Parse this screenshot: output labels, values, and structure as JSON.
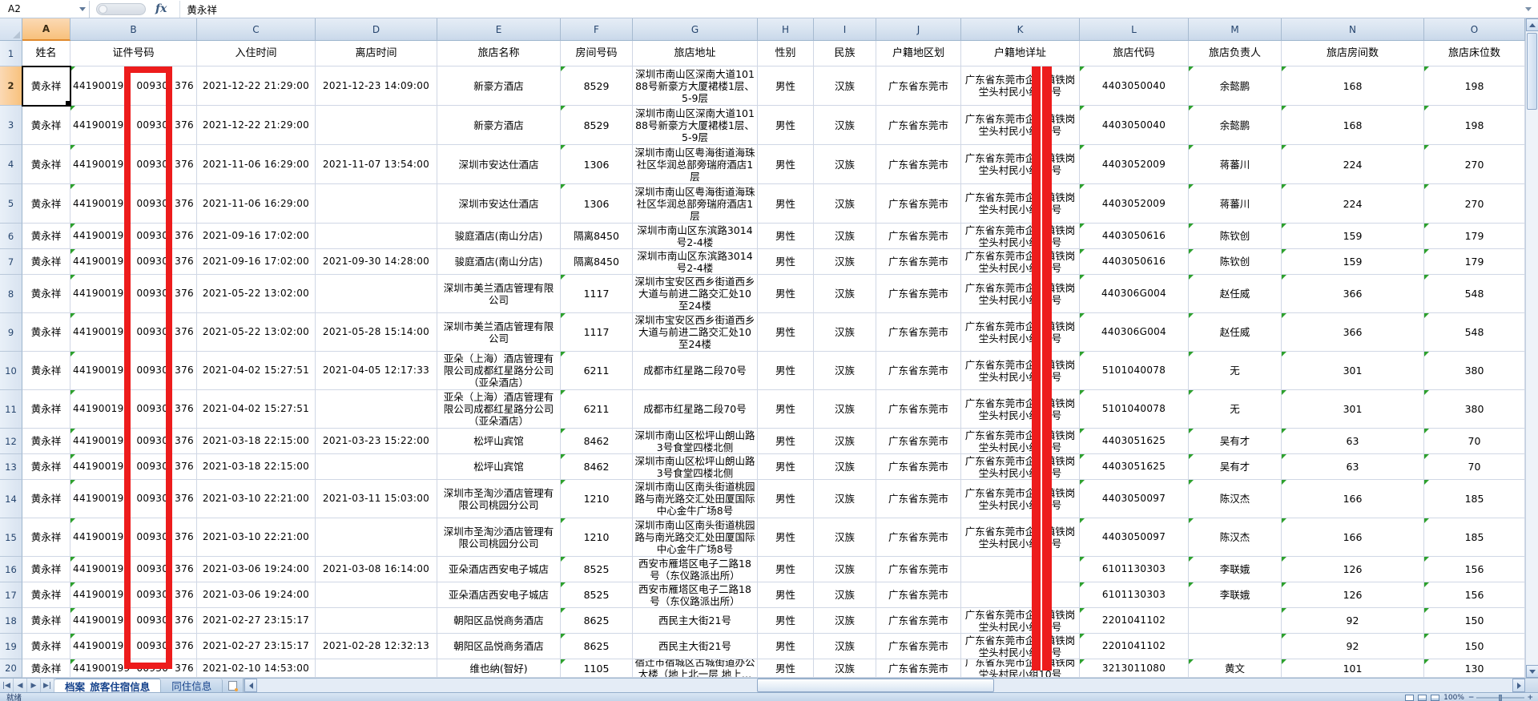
{
  "formula_bar": {
    "cell_ref": "A2",
    "fx_label": "fx",
    "value": "黄永祥"
  },
  "columns": [
    "A",
    "B",
    "C",
    "D",
    "E",
    "F",
    "G",
    "H",
    "I",
    "J",
    "K",
    "L",
    "M",
    "N",
    "O"
  ],
  "header_row": {
    "n": "1",
    "cells": [
      "姓名",
      "证件号码",
      "入住时间",
      "离店时间",
      "旅店名称",
      "房间号码",
      "旅店地址",
      "性别",
      "民族",
      "户籍地区划",
      "户籍地详址",
      "旅店代码",
      "旅店负责人",
      "旅店房间数",
      "旅店床位数"
    ]
  },
  "redaction_color": "#ed1c1c",
  "rows": [
    {
      "n": "2",
      "name": "黄永祥",
      "id1": "441900199",
      "id2": "00930",
      "id3": "376",
      "checkin": "2021-12-22 21:29:00",
      "checkout": "2021-12-23 14:09:00",
      "hotel": "新豪方酒店",
      "room": "8529",
      "address": "深圳市南山区深南大道10188号新豪方大厦裙楼1层、5-9层",
      "gender": "男性",
      "ethnicity": "汉族",
      "region": "广东省东莞市",
      "home_address": "广东省东莞市企石镇铁岗坣头村民小组10号",
      "code": "4403050040",
      "manager": "余懿鹏",
      "room_count": "168",
      "bed_count": "198",
      "flags": [
        "b",
        "f",
        "l",
        "m",
        "n",
        "o"
      ],
      "selected": true
    },
    {
      "n": "3",
      "name": "黄永祥",
      "id1": "441900199",
      "id2": "00930",
      "id3": "376",
      "checkin": "2021-12-22 21:29:00",
      "checkout": "",
      "hotel": "新豪方酒店",
      "room": "8529",
      "address": "深圳市南山区深南大道10188号新豪方大厦裙楼1层、5-9层",
      "gender": "男性",
      "ethnicity": "汉族",
      "region": "广东省东莞市",
      "home_address": "广东省东莞市企石镇铁岗坣头村民小组10号",
      "code": "4403050040",
      "manager": "余懿鹏",
      "room_count": "168",
      "bed_count": "198",
      "flags": [
        "b",
        "f",
        "l",
        "m",
        "n",
        "o"
      ]
    },
    {
      "n": "4",
      "name": "黄永祥",
      "id1": "441900199",
      "id2": "00930",
      "id3": "376",
      "checkin": "2021-11-06 16:29:00",
      "checkout": "2021-11-07 13:54:00",
      "hotel": "深圳市安达仕酒店",
      "room": "1306",
      "address": "深圳市南山区粤海街道海珠社区华润总部旁瑞府酒店1层",
      "gender": "男性",
      "ethnicity": "汉族",
      "region": "广东省东莞市",
      "home_address": "广东省东莞市企石镇铁岗坣头村民小组10号",
      "code": "4403052009",
      "manager": "蒋蕃川",
      "room_count": "224",
      "bed_count": "270",
      "flags": [
        "b",
        "f",
        "l",
        "m",
        "n",
        "o"
      ]
    },
    {
      "n": "5",
      "name": "黄永祥",
      "id1": "441900199",
      "id2": "00930",
      "id3": "376",
      "checkin": "2021-11-06 16:29:00",
      "checkout": "",
      "hotel": "深圳市安达仕酒店",
      "room": "1306",
      "address": "深圳市南山区粤海街道海珠社区华润总部旁瑞府酒店1层",
      "gender": "男性",
      "ethnicity": "汉族",
      "region": "广东省东莞市",
      "home_address": "广东省东莞市企石镇铁岗坣头村民小组10号",
      "code": "4403052009",
      "manager": "蒋蕃川",
      "room_count": "224",
      "bed_count": "270",
      "flags": [
        "b",
        "f",
        "l",
        "m",
        "n",
        "o"
      ]
    },
    {
      "n": "6",
      "name": "黄永祥",
      "id1": "441900199",
      "id2": "00930",
      "id3": "376",
      "checkin": "2021-09-16 17:02:00",
      "checkout": "",
      "hotel": "骏庭酒店(南山分店)",
      "room": "隔离8450",
      "address": "深圳市南山区东滨路3014号2-4楼",
      "gender": "男性",
      "ethnicity": "汉族",
      "region": "广东省东莞市",
      "home_address": "广东省东莞市企石镇铁岗坣头村民小组10号",
      "code": "4403050616",
      "manager": "陈钦创",
      "room_count": "159",
      "bed_count": "179",
      "flags": [
        "b",
        "l",
        "m",
        "n",
        "o"
      ]
    },
    {
      "n": "7",
      "name": "黄永祥",
      "id1": "441900199",
      "id2": "00930",
      "id3": "376",
      "checkin": "2021-09-16 17:02:00",
      "checkout": "2021-09-30 14:28:00",
      "hotel": "骏庭酒店(南山分店)",
      "room": "隔离8450",
      "address": "深圳市南山区东滨路3014号2-4楼",
      "gender": "男性",
      "ethnicity": "汉族",
      "region": "广东省东莞市",
      "home_address": "广东省东莞市企石镇铁岗坣头村民小组10号",
      "code": "4403050616",
      "manager": "陈钦创",
      "room_count": "159",
      "bed_count": "179",
      "flags": [
        "b",
        "l",
        "m",
        "n",
        "o"
      ]
    },
    {
      "n": "8",
      "name": "黄永祥",
      "id1": "441900199",
      "id2": "00930",
      "id3": "376",
      "checkin": "2021-05-22 13:02:00",
      "checkout": "",
      "hotel": "深圳市美兰酒店管理有限公司",
      "room": "1117",
      "address": "深圳市宝安区西乡街道西乡大道与前进二路交汇处10至24楼",
      "gender": "男性",
      "ethnicity": "汉族",
      "region": "广东省东莞市",
      "home_address": "广东省东莞市企石镇铁岗坣头村民小组10号",
      "code": "440306G004",
      "manager": "赵任威",
      "room_count": "366",
      "bed_count": "548",
      "flags": [
        "b",
        "f",
        "l",
        "m",
        "n",
        "o"
      ]
    },
    {
      "n": "9",
      "name": "黄永祥",
      "id1": "441900199",
      "id2": "00930",
      "id3": "376",
      "checkin": "2021-05-22 13:02:00",
      "checkout": "2021-05-28 15:14:00",
      "hotel": "深圳市美兰酒店管理有限公司",
      "room": "1117",
      "address": "深圳市宝安区西乡街道西乡大道与前进二路交汇处10至24楼",
      "gender": "男性",
      "ethnicity": "汉族",
      "region": "广东省东莞市",
      "home_address": "广东省东莞市企石镇铁岗坣头村民小组10号",
      "code": "440306G004",
      "manager": "赵任威",
      "room_count": "366",
      "bed_count": "548",
      "flags": [
        "b",
        "f",
        "l",
        "m",
        "n",
        "o"
      ]
    },
    {
      "n": "10",
      "name": "黄永祥",
      "id1": "441900199",
      "id2": "00930",
      "id3": "376",
      "checkin": "2021-04-02 15:27:51",
      "checkout": "2021-04-05 12:17:33",
      "hotel": "亚朵（上海）酒店管理有限公司成都红星路分公司（亚朵酒店）",
      "room": "6211",
      "address": "成都市红星路二段70号",
      "gender": "男性",
      "ethnicity": "汉族",
      "region": "广东省东莞市",
      "home_address": "广东省东莞市企石镇铁岗坣头村民小组10号",
      "code": "5101040078",
      "manager": "无",
      "room_count": "301",
      "bed_count": "380",
      "flags": [
        "b",
        "f",
        "l",
        "m",
        "n",
        "o"
      ]
    },
    {
      "n": "11",
      "name": "黄永祥",
      "id1": "441900199",
      "id2": "00930",
      "id3": "376",
      "checkin": "2021-04-02 15:27:51",
      "checkout": "",
      "hotel": "亚朵（上海）酒店管理有限公司成都红星路分公司（亚朵酒店）",
      "room": "6211",
      "address": "成都市红星路二段70号",
      "gender": "男性",
      "ethnicity": "汉族",
      "region": "广东省东莞市",
      "home_address": "广东省东莞市企石镇铁岗坣头村民小组10号",
      "code": "5101040078",
      "manager": "无",
      "room_count": "301",
      "bed_count": "380",
      "flags": [
        "b",
        "f",
        "l",
        "m",
        "n",
        "o"
      ]
    },
    {
      "n": "12",
      "name": "黄永祥",
      "id1": "441900199",
      "id2": "00930",
      "id3": "376",
      "checkin": "2021-03-18 22:15:00",
      "checkout": "2021-03-23 15:22:00",
      "hotel": "松坪山宾馆",
      "room": "8462",
      "address": "深圳市南山区松坪山朗山路3号食堂四楼北侧",
      "gender": "男性",
      "ethnicity": "汉族",
      "region": "广东省东莞市",
      "home_address": "广东省东莞市企石镇铁岗坣头村民小组10号",
      "code": "4403051625",
      "manager": "吴有才",
      "room_count": "63",
      "bed_count": "70",
      "flags": [
        "b",
        "f",
        "l",
        "m",
        "n",
        "o"
      ]
    },
    {
      "n": "13",
      "name": "黄永祥",
      "id1": "441900199",
      "id2": "00930",
      "id3": "376",
      "checkin": "2021-03-18 22:15:00",
      "checkout": "",
      "hotel": "松坪山宾馆",
      "room": "8462",
      "address": "深圳市南山区松坪山朗山路3号食堂四楼北侧",
      "gender": "男性",
      "ethnicity": "汉族",
      "region": "广东省东莞市",
      "home_address": "广东省东莞市企石镇铁岗坣头村民小组10号",
      "code": "4403051625",
      "manager": "吴有才",
      "room_count": "63",
      "bed_count": "70",
      "flags": [
        "b",
        "f",
        "l",
        "m",
        "n",
        "o"
      ]
    },
    {
      "n": "14",
      "name": "黄永祥",
      "id1": "441900199",
      "id2": "00930",
      "id3": "376",
      "checkin": "2021-03-10 22:21:00",
      "checkout": "2021-03-11 15:03:00",
      "hotel": "深圳市圣淘沙酒店管理有限公司桃园分公司",
      "room": "1210",
      "address": "深圳市南山区南头街道桃园路与南光路交汇处田厦国际中心金牛广场8号",
      "gender": "男性",
      "ethnicity": "汉族",
      "region": "广东省东莞市",
      "home_address": "广东省东莞市企石镇铁岗坣头村民小组10号",
      "code": "4403050097",
      "manager": "陈汉杰",
      "room_count": "166",
      "bed_count": "185",
      "flags": [
        "b",
        "f",
        "l",
        "m",
        "n",
        "o"
      ]
    },
    {
      "n": "15",
      "name": "黄永祥",
      "id1": "441900199",
      "id2": "00930",
      "id3": "376",
      "checkin": "2021-03-10 22:21:00",
      "checkout": "",
      "hotel": "深圳市圣淘沙酒店管理有限公司桃园分公司",
      "room": "1210",
      "address": "深圳市南山区南头街道桃园路与南光路交汇处田厦国际中心金牛广场8号",
      "gender": "男性",
      "ethnicity": "汉族",
      "region": "广东省东莞市",
      "home_address": "广东省东莞市企石镇铁岗坣头村民小组10号",
      "code": "4403050097",
      "manager": "陈汉杰",
      "room_count": "166",
      "bed_count": "185",
      "flags": [
        "b",
        "f",
        "l",
        "m",
        "n",
        "o"
      ]
    },
    {
      "n": "16",
      "name": "黄永祥",
      "id1": "441900199",
      "id2": "00930",
      "id3": "376",
      "checkin": "2021-03-06 19:24:00",
      "checkout": "2021-03-08 16:14:00",
      "hotel": "亚朵酒店西安电子城店",
      "room": "8525",
      "address": "西安市雁塔区电子二路18号（东仪路派出所）",
      "gender": "男性",
      "ethnicity": "汉族",
      "region": "广东省东莞市",
      "home_address": "",
      "code": "6101130303",
      "manager": "李联娥",
      "room_count": "126",
      "bed_count": "156",
      "flags": [
        "b",
        "f",
        "l",
        "m",
        "n",
        "o"
      ]
    },
    {
      "n": "17",
      "name": "黄永祥",
      "id1": "441900199",
      "id2": "00930",
      "id3": "376",
      "checkin": "2021-03-06 19:24:00",
      "checkout": "",
      "hotel": "亚朵酒店西安电子城店",
      "room": "8525",
      "address": "西安市雁塔区电子二路18号（东仪路派出所）",
      "gender": "男性",
      "ethnicity": "汉族",
      "region": "广东省东莞市",
      "home_address": "",
      "code": "6101130303",
      "manager": "李联娥",
      "room_count": "126",
      "bed_count": "156",
      "flags": [
        "b",
        "f",
        "l",
        "m",
        "n",
        "o"
      ]
    },
    {
      "n": "18",
      "name": "黄永祥",
      "id1": "441900199",
      "id2": "00930",
      "id3": "376",
      "checkin": "2021-02-27 23:15:17",
      "checkout": "",
      "hotel": "朝阳区品悦商务酒店",
      "room": "8625",
      "address": "西民主大街21号",
      "gender": "男性",
      "ethnicity": "汉族",
      "region": "广东省东莞市",
      "home_address": "广东省东莞市企石镇铁岗坣头村民小组10号",
      "code": "2201041102",
      "manager": "",
      "room_count": "92",
      "bed_count": "150",
      "flags": [
        "b",
        "f",
        "l",
        "n",
        "o"
      ]
    },
    {
      "n": "19",
      "name": "黄永祥",
      "id1": "441900199",
      "id2": "00930",
      "id3": "376",
      "checkin": "2021-02-27 23:15:17",
      "checkout": "2021-02-28 12:32:13",
      "hotel": "朝阳区品悦商务酒店",
      "room": "8625",
      "address": "西民主大街21号",
      "gender": "男性",
      "ethnicity": "汉族",
      "region": "广东省东莞市",
      "home_address": "广东省东莞市企石镇铁岗坣头村民小组10号",
      "code": "2201041102",
      "manager": "",
      "room_count": "92",
      "bed_count": "150",
      "flags": [
        "b",
        "f",
        "l",
        "n",
        "o"
      ]
    },
    {
      "n": "20",
      "name": "黄永祥",
      "id1": "441900199",
      "id2": "00930",
      "id3": "376",
      "checkin": "2021-02-10 14:53:00",
      "checkout": "",
      "hotel": "维也纳(智好)",
      "room": "1105",
      "address": "宿迁市宿城区古城街道办公大楼（地上北一层 地上…",
      "gender": "男性",
      "ethnicity": "汉族",
      "region": "广东省东莞市",
      "home_address": "广东省东莞市企石镇铁岗坣头村民小组10号",
      "code": "3213011080",
      "manager": "黄文",
      "room_count": "101",
      "bed_count": "130",
      "flags": [
        "b",
        "f",
        "l",
        "m",
        "n",
        "o"
      ]
    }
  ],
  "tab_bar": {
    "nav_icons": [
      "|◀",
      "◀",
      "▶",
      "▶|"
    ],
    "tabs": [
      {
        "label": "档案_旅客住宿信息",
        "active": true
      },
      {
        "label": "同住信息",
        "active": false
      }
    ]
  },
  "status_bar": {
    "ready_label": "就绪",
    "zoom_label": "100%"
  }
}
